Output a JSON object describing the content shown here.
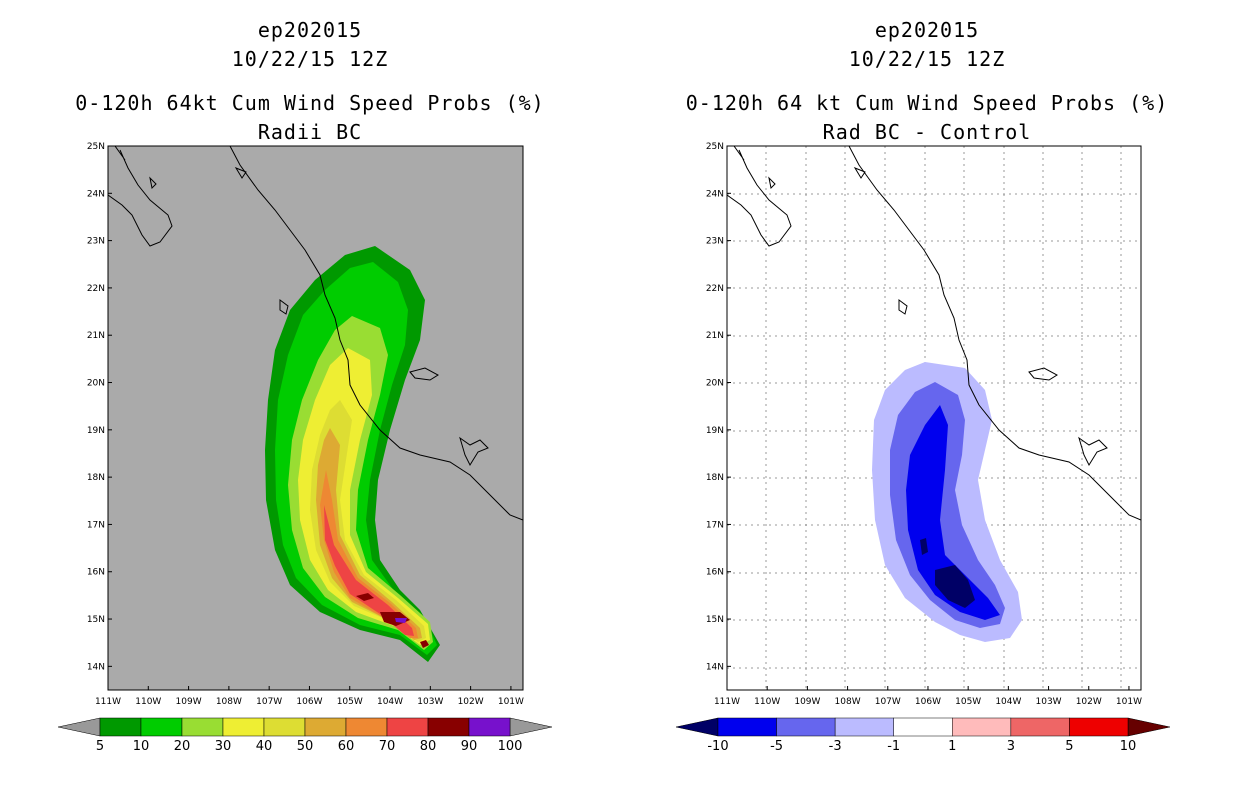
{
  "panels": [
    {
      "storm_id": "ep202015",
      "date": "10/22/15 12Z",
      "title": "0-120h 64kt Cum Wind Speed Probs (%)",
      "subtitle": "Radii BC",
      "colorbar": {
        "labels": [
          "5",
          "10",
          "20",
          "30",
          "40",
          "50",
          "60",
          "70",
          "80",
          "90",
          "100"
        ],
        "colors": [
          "#009900",
          "#00cc00",
          "#99dd33",
          "#eeee33",
          "#dddd33",
          "#ddaa33",
          "#ee8833",
          "#ee4444",
          "#880000",
          "#7711cc"
        ],
        "end_colors": [
          "#999999",
          "#999999"
        ]
      }
    },
    {
      "storm_id": "ep202015",
      "date": "10/22/15 12Z",
      "title": "0-120h 64 kt Cum Wind Speed Probs (%)",
      "subtitle": "Rad BC - Control",
      "colorbar": {
        "labels": [
          "-10",
          "-5",
          "-3",
          "-1",
          "1",
          "3",
          "5",
          "10"
        ],
        "colors": [
          "#0000ee",
          "#6666ee",
          "#bbbbff",
          "#ffffff",
          "#ffbbbb",
          "#ee6666",
          "#ee0000"
        ],
        "end_colors": [
          "#000066",
          "#660000"
        ]
      }
    }
  ],
  "chart_data": [
    {
      "type": "filled-contour-map",
      "title": "0-120h 64kt Cum Wind Speed Probs (%)",
      "subtitle": "Radii BC",
      "x_ticks": [
        "111W",
        "110W",
        "109W",
        "108W",
        "107W",
        "106W",
        "105W",
        "104W",
        "103W",
        "102W",
        "101W"
      ],
      "y_ticks": [
        "14N",
        "15N",
        "16N",
        "17N",
        "18N",
        "19N",
        "20N",
        "21N",
        "22N",
        "23N",
        "24N",
        "25N"
      ],
      "xlim": [
        -111,
        -100.7
      ],
      "ylim": [
        13.5,
        25
      ],
      "contour_levels": [
        5,
        10,
        20,
        30,
        40,
        50,
        60,
        70,
        80,
        90,
        100
      ],
      "background_color": "#aaaaaa",
      "max_probability_location": {
        "lon": -103.7,
        "lat": 15.0
      }
    },
    {
      "type": "filled-contour-map",
      "title": "0-120h 64 kt Cum Wind Speed Probs (%)",
      "subtitle": "Rad BC - Control",
      "x_ticks": [
        "111W",
        "110W",
        "109W",
        "108W",
        "107W",
        "106W",
        "105W",
        "104W",
        "103W",
        "102W",
        "101W"
      ],
      "y_ticks": [
        "14N",
        "15N",
        "16N",
        "17N",
        "18N",
        "19N",
        "20N",
        "21N",
        "22N",
        "23N",
        "24N",
        "25N"
      ],
      "xlim": [
        -111,
        -100.7
      ],
      "ylim": [
        13.5,
        25
      ],
      "contour_levels": [
        -10,
        -5,
        -3,
        -1,
        1,
        3,
        5,
        10
      ],
      "background_color": "#ffffff",
      "grid": true,
      "min_difference_location": {
        "lon": -105.2,
        "lat": 15.7
      }
    }
  ]
}
